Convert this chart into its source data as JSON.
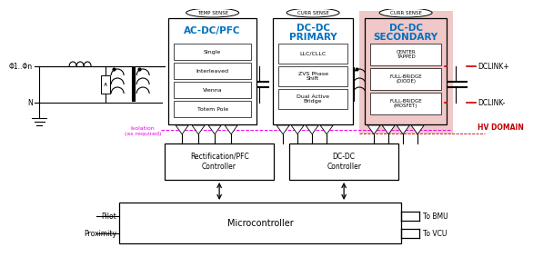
{
  "bg_color": "#ffffff",
  "blue_color": "#0070c0",
  "red_color": "#c00000",
  "magenta_color": "#ee00ee",
  "black_color": "#000000",
  "light_red_bg": "#f0c8c8",
  "ac_subs": [
    "Single",
    "Interleaved",
    "Vienna",
    "Totem Pole"
  ],
  "pri_subs": [
    "LLC/CLLC",
    "ZVS Phase\nShift",
    "Dual Active\nBridge"
  ],
  "sec_subs": [
    "CENTER\nTAPPED",
    "FULL-BRIDGE\n(DIODE)",
    "FULL-BRIDGE\n(MOSFET)"
  ],
  "phi_label": "Φ1..Φn",
  "n_label": "N",
  "pilot_label": "Pilot",
  "proximity_label": "Proximity",
  "to_bmu": "To BMU",
  "to_vcu": "To VCU",
  "dclink_plus": "DCLINK+",
  "dclink_minus": "DCLINK-",
  "hv_domain": "HV DOMAIN",
  "temp_sense": "TEMP SENSE",
  "curr_sense": "CURR SENSE",
  "isolation_text": "Isolation\n(as required)",
  "mcu_label": "Microcontroller",
  "rfc_label": "Rectification/PFC\nController",
  "dcc_label": "DC-DC\nController"
}
